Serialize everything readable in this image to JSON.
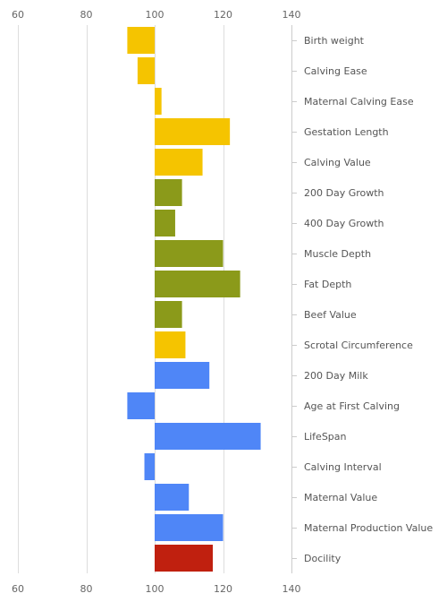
{
  "chart_data": {
    "type": "bar",
    "orientation": "horizontal",
    "baseline": 100,
    "xlim": [
      60,
      140
    ],
    "x_ticks": [
      60,
      80,
      100,
      120,
      140
    ],
    "x_tick_labels": [
      "60",
      "80",
      "100",
      "120",
      "140"
    ],
    "axis_label_position": "top and bottom",
    "category_label_position": "right",
    "grid": true,
    "colors": {
      "calving": "#f5c400",
      "growth": "#8b9a1a",
      "maternal": "#4f86f7",
      "docility": "#c0200f"
    },
    "categories": [
      "Birth weight",
      "Calving Ease",
      "Maternal Calving Ease",
      "Gestation Length",
      "Calving Value",
      "200 Day Growth",
      "400 Day Growth",
      "Muscle Depth",
      "Fat Depth",
      "Beef Value",
      "Scrotal Circumference",
      "200 Day Milk",
      "Age at First Calving",
      "LifeSpan",
      "Calving Interval",
      "Maternal Value",
      "Maternal Production Value",
      "Docility"
    ],
    "values": [
      92,
      95,
      102,
      122,
      114,
      108,
      106,
      120,
      125,
      108,
      109,
      116,
      92,
      131,
      97,
      110,
      120,
      117
    ],
    "bar_groups": [
      "calving",
      "calving",
      "calving",
      "calving",
      "calving",
      "growth",
      "growth",
      "growth",
      "growth",
      "growth",
      "calving",
      "maternal",
      "maternal",
      "maternal",
      "maternal",
      "maternal",
      "maternal",
      "docility"
    ]
  }
}
